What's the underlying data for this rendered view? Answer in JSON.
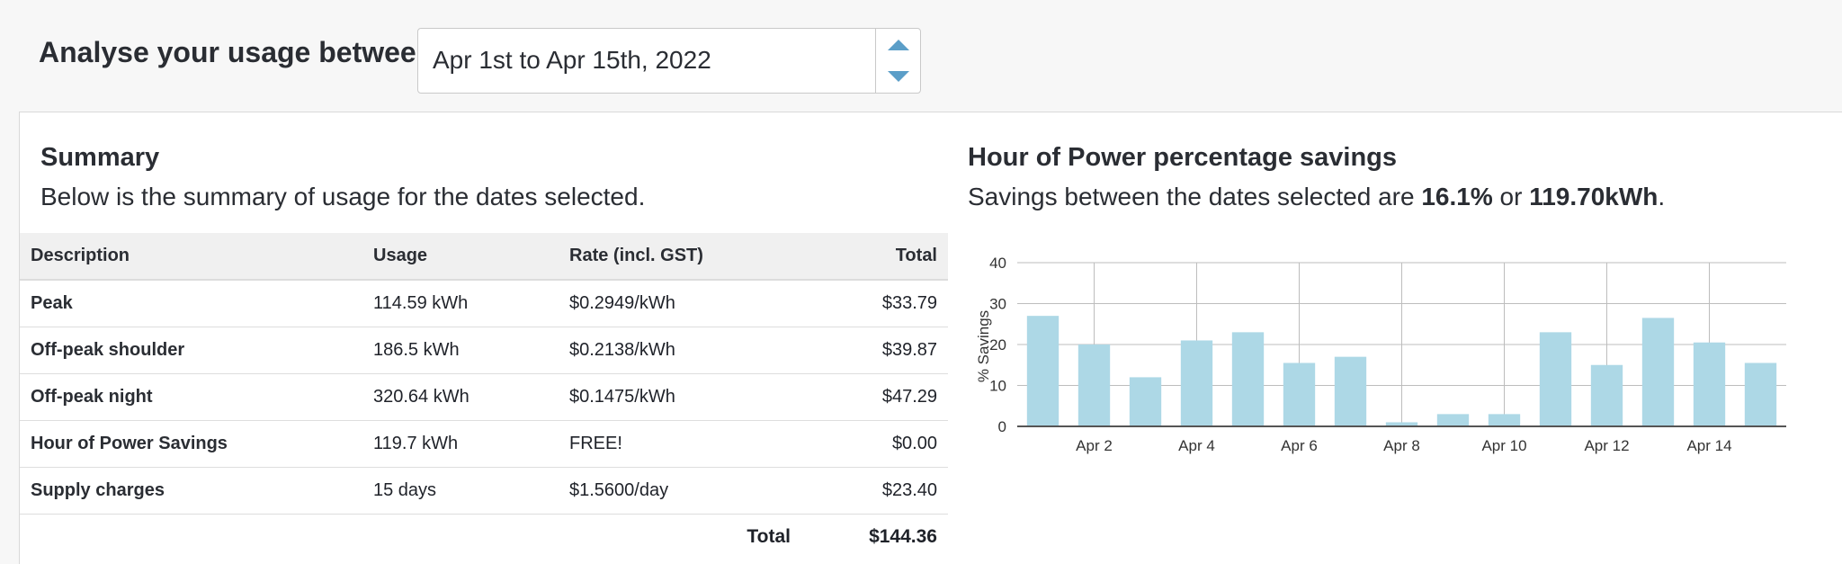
{
  "header": {
    "analyse_label": "Analyse your usage between",
    "date_range": "Apr 1st to Apr 15th, 2022"
  },
  "summary": {
    "title": "Summary",
    "description": "Below is the summary of usage for the dates selected.",
    "columns": [
      "Description",
      "Usage",
      "Rate (incl. GST)",
      "Total"
    ],
    "rows": [
      {
        "description": "Peak",
        "usage": "114.59 kWh",
        "rate": "$0.2949/kWh",
        "total": "$33.79"
      },
      {
        "description": "Off-peak shoulder",
        "usage": "186.5 kWh",
        "rate": "$0.2138/kWh",
        "total": "$39.87"
      },
      {
        "description": "Off-peak night",
        "usage": "320.64 kWh",
        "rate": "$0.1475/kWh",
        "total": "$47.29"
      },
      {
        "description": "Hour of Power Savings",
        "usage": "119.7 kWh",
        "rate": "FREE!",
        "total": "$0.00"
      },
      {
        "description": "Supply charges",
        "usage": "15 days",
        "rate": "$1.5600/day",
        "total": "$23.40"
      }
    ],
    "total_label": "Total",
    "total_value": "$144.36"
  },
  "savings": {
    "title": "Hour of Power percentage savings",
    "desc_prefix": "Savings between the dates selected are ",
    "percent": "16.1%",
    "desc_mid": " or ",
    "kwh": "119.70kWh",
    "desc_suffix": "."
  },
  "chart_data": {
    "type": "bar",
    "categories": [
      "Apr 1",
      "Apr 2",
      "Apr 3",
      "Apr 4",
      "Apr 5",
      "Apr 6",
      "Apr 7",
      "Apr 8",
      "Apr 9",
      "Apr 10",
      "Apr 11",
      "Apr 12",
      "Apr 13",
      "Apr 14",
      "Apr 15"
    ],
    "tick_labels": [
      "Apr 2",
      "Apr 4",
      "Apr 6",
      "Apr 8",
      "Apr 10",
      "Apr 12",
      "Apr 14"
    ],
    "values": [
      27,
      20,
      12,
      21,
      23,
      15.5,
      17,
      1,
      3,
      3,
      23,
      15,
      26.5,
      20.5,
      15.5
    ],
    "ylabel": "% Savings",
    "xlabel": "",
    "ylim": [
      0,
      40
    ],
    "yticks": [
      0,
      10,
      20,
      30,
      40
    ],
    "grid": true,
    "bar_color": "#add8e6"
  },
  "colors": {
    "accent": "#5b9ec8",
    "bar": "#add8e6"
  }
}
